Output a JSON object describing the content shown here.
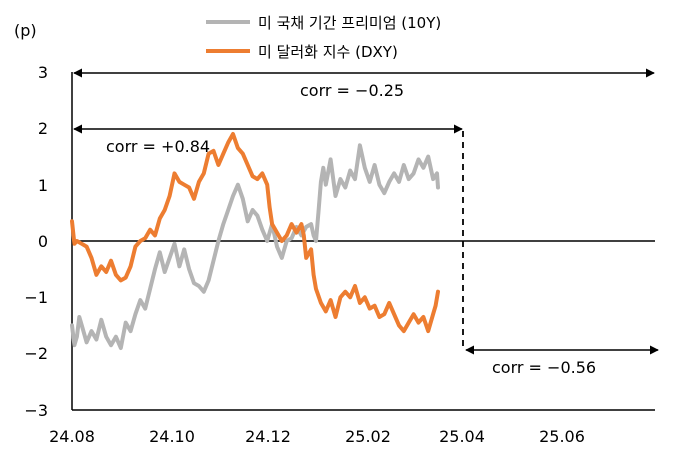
{
  "chart_data": {
    "type": "line",
    "unit_label": "(p)",
    "x_ticks": [
      "24.08",
      "24.10",
      "24.12",
      "25.02",
      "25.04",
      "25.06"
    ],
    "y_ticks": [
      "3",
      "2",
      "1",
      "0",
      "−1",
      "−2",
      "−3"
    ],
    "ylim": [
      -3,
      3
    ],
    "legend": [
      {
        "name": "미 국채 기간 프리미엄 (10Y)",
        "color": "#b4b4b4"
      },
      {
        "name": "미 달러화 지수 (DXY)",
        "color": "#ed7d31"
      }
    ],
    "annotations": [
      {
        "text": "corr = −0.25"
      },
      {
        "text": "corr = +0.84"
      },
      {
        "text": "corr = −0.56"
      }
    ],
    "series": [
      {
        "name": "미 국채 기간 프리미엄 (10Y)",
        "color": "#b4b4b4",
        "points": [
          [
            0.0,
            -1.5
          ],
          [
            0.05,
            -1.85
          ],
          [
            0.1,
            -1.7
          ],
          [
            0.15,
            -1.35
          ],
          [
            0.2,
            -1.5
          ],
          [
            0.3,
            -1.8
          ],
          [
            0.4,
            -1.6
          ],
          [
            0.5,
            -1.75
          ],
          [
            0.6,
            -1.4
          ],
          [
            0.7,
            -1.7
          ],
          [
            0.8,
            -1.85
          ],
          [
            0.9,
            -1.7
          ],
          [
            1.0,
            -1.9
          ],
          [
            1.1,
            -1.45
          ],
          [
            1.2,
            -1.6
          ],
          [
            1.3,
            -1.3
          ],
          [
            1.4,
            -1.05
          ],
          [
            1.5,
            -1.2
          ],
          [
            1.6,
            -0.85
          ],
          [
            1.7,
            -0.5
          ],
          [
            1.8,
            -0.2
          ],
          [
            1.9,
            -0.55
          ],
          [
            2.0,
            -0.3
          ],
          [
            2.1,
            -0.05
          ],
          [
            2.2,
            -0.45
          ],
          [
            2.3,
            -0.15
          ],
          [
            2.4,
            -0.5
          ],
          [
            2.5,
            -0.75
          ],
          [
            2.6,
            -0.8
          ],
          [
            2.7,
            -0.9
          ],
          [
            2.8,
            -0.7
          ],
          [
            2.9,
            -0.35
          ],
          [
            3.0,
            0.0
          ],
          [
            3.1,
            0.3
          ],
          [
            3.2,
            0.55
          ],
          [
            3.3,
            0.8
          ],
          [
            3.4,
            1.0
          ],
          [
            3.5,
            0.75
          ],
          [
            3.6,
            0.35
          ],
          [
            3.7,
            0.55
          ],
          [
            3.8,
            0.45
          ],
          [
            3.9,
            0.2
          ],
          [
            4.0,
            0.0
          ],
          [
            4.1,
            0.3
          ],
          [
            4.2,
            -0.1
          ],
          [
            4.3,
            -0.3
          ],
          [
            4.4,
            0.0
          ],
          [
            4.5,
            0.05
          ],
          [
            4.6,
            0.25
          ],
          [
            4.7,
            0.1
          ],
          [
            4.8,
            0.25
          ],
          [
            4.9,
            0.3
          ],
          [
            4.95,
            0.1
          ],
          [
            5.0,
            0.0
          ],
          [
            5.05,
            0.5
          ],
          [
            5.1,
            1.05
          ],
          [
            5.15,
            1.3
          ],
          [
            5.2,
            1.0
          ],
          [
            5.3,
            1.45
          ],
          [
            5.4,
            0.8
          ],
          [
            5.5,
            1.1
          ],
          [
            5.6,
            0.95
          ],
          [
            5.7,
            1.25
          ],
          [
            5.8,
            1.1
          ],
          [
            5.9,
            1.7
          ],
          [
            6.0,
            1.3
          ],
          [
            6.1,
            1.05
          ],
          [
            6.2,
            1.35
          ],
          [
            6.3,
            1.0
          ],
          [
            6.4,
            0.85
          ],
          [
            6.5,
            1.05
          ],
          [
            6.6,
            1.2
          ],
          [
            6.7,
            1.05
          ],
          [
            6.8,
            1.35
          ],
          [
            6.9,
            1.1
          ],
          [
            7.0,
            1.2
          ],
          [
            7.1,
            1.45
          ],
          [
            7.2,
            1.3
          ],
          [
            7.3,
            1.5
          ],
          [
            7.4,
            1.1
          ],
          [
            7.48,
            1.2
          ],
          [
            7.5,
            0.95
          ]
        ]
      },
      {
        "name": "미 달러화 지수 (DXY)",
        "color": "#ed7d31",
        "points": [
          [
            0.0,
            0.35
          ],
          [
            0.05,
            -0.05
          ],
          [
            0.1,
            0.0
          ],
          [
            0.2,
            -0.05
          ],
          [
            0.3,
            -0.1
          ],
          [
            0.4,
            -0.3
          ],
          [
            0.5,
            -0.6
          ],
          [
            0.6,
            -0.45
          ],
          [
            0.7,
            -0.55
          ],
          [
            0.8,
            -0.35
          ],
          [
            0.9,
            -0.6
          ],
          [
            1.0,
            -0.7
          ],
          [
            1.1,
            -0.65
          ],
          [
            1.2,
            -0.45
          ],
          [
            1.3,
            -0.1
          ],
          [
            1.4,
            0.0
          ],
          [
            1.5,
            0.05
          ],
          [
            1.6,
            0.2
          ],
          [
            1.7,
            0.1
          ],
          [
            1.8,
            0.4
          ],
          [
            1.9,
            0.55
          ],
          [
            2.0,
            0.8
          ],
          [
            2.1,
            1.2
          ],
          [
            2.2,
            1.05
          ],
          [
            2.3,
            1.0
          ],
          [
            2.4,
            0.95
          ],
          [
            2.5,
            0.75
          ],
          [
            2.6,
            1.05
          ],
          [
            2.7,
            1.2
          ],
          [
            2.8,
            1.55
          ],
          [
            2.9,
            1.6
          ],
          [
            3.0,
            1.35
          ],
          [
            3.1,
            1.55
          ],
          [
            3.2,
            1.75
          ],
          [
            3.3,
            1.9
          ],
          [
            3.4,
            1.65
          ],
          [
            3.5,
            1.55
          ],
          [
            3.6,
            1.35
          ],
          [
            3.7,
            1.15
          ],
          [
            3.8,
            1.1
          ],
          [
            3.9,
            1.2
          ],
          [
            4.0,
            1.0
          ],
          [
            4.05,
            0.6
          ],
          [
            4.1,
            0.3
          ],
          [
            4.2,
            0.15
          ],
          [
            4.3,
            0.0
          ],
          [
            4.4,
            0.1
          ],
          [
            4.5,
            0.3
          ],
          [
            4.6,
            0.15
          ],
          [
            4.7,
            0.3
          ],
          [
            4.75,
            0.1
          ],
          [
            4.8,
            -0.3
          ],
          [
            4.9,
            -0.15
          ],
          [
            4.95,
            -0.6
          ],
          [
            5.0,
            -0.85
          ],
          [
            5.1,
            -1.1
          ],
          [
            5.2,
            -1.25
          ],
          [
            5.3,
            -1.05
          ],
          [
            5.4,
            -1.35
          ],
          [
            5.5,
            -1.0
          ],
          [
            5.6,
            -0.9
          ],
          [
            5.7,
            -1.0
          ],
          [
            5.8,
            -0.8
          ],
          [
            5.9,
            -1.1
          ],
          [
            6.0,
            -1.0
          ],
          [
            6.1,
            -1.2
          ],
          [
            6.2,
            -1.15
          ],
          [
            6.3,
            -1.35
          ],
          [
            6.4,
            -1.3
          ],
          [
            6.5,
            -1.1
          ],
          [
            6.6,
            -1.3
          ],
          [
            6.7,
            -1.5
          ],
          [
            6.8,
            -1.6
          ],
          [
            6.9,
            -1.45
          ],
          [
            7.0,
            -1.3
          ],
          [
            7.1,
            -1.45
          ],
          [
            7.2,
            -1.35
          ],
          [
            7.3,
            -1.6
          ],
          [
            7.4,
            -1.3
          ],
          [
            7.45,
            -1.15
          ],
          [
            7.5,
            -0.9
          ]
        ]
      }
    ]
  }
}
